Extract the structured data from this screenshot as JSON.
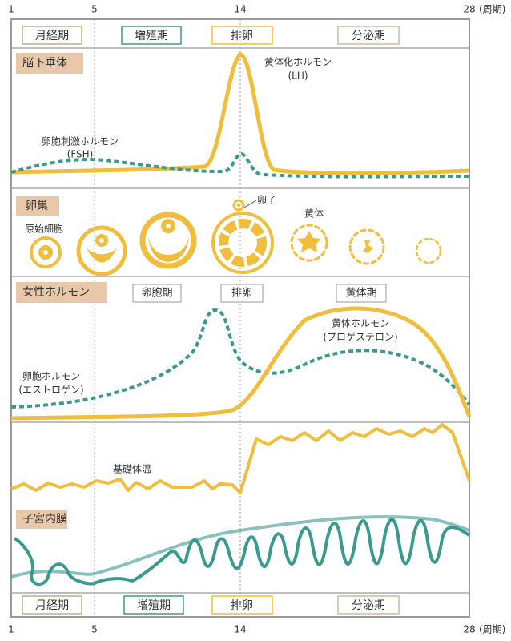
{
  "axis": {
    "ticks": [
      "1",
      "5",
      "14",
      "28"
    ],
    "unit": "(周期)"
  },
  "phases": [
    "月経期",
    "増殖期",
    "排卵",
    "分泌期"
  ],
  "sections": {
    "pituitary": {
      "label": "脳下垂体",
      "lh": [
        "黄体化ホルモン",
        "(LH)"
      ],
      "fsh": [
        "卵胞刺激ホルモン",
        "(FSH)"
      ]
    },
    "ovary": {
      "label": "卵巣",
      "egg": "卵子",
      "primordial": "原始細胞",
      "corpus_luteum": "黄体"
    },
    "hormones": {
      "label": "女性ホルモン",
      "phases": [
        "卵胞期",
        "排卵",
        "黄体期"
      ],
      "progesterone": [
        "黄体ホルモン",
        "(プロゲステロン)"
      ],
      "estrogen": [
        "卵胞ホルモン",
        "(エストロゲン)"
      ]
    },
    "temperature": {
      "label": "基礎体温"
    },
    "endometrium": {
      "label": "子宮内膜"
    }
  }
}
